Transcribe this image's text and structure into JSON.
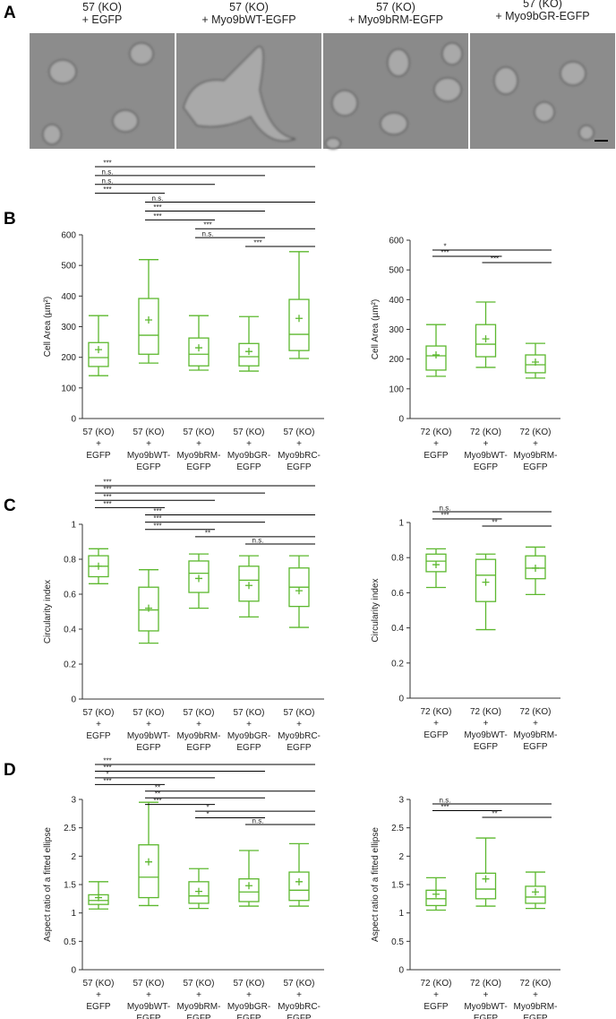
{
  "panels": [
    "A",
    "B",
    "C",
    "D"
  ],
  "images": [
    [
      "57 (KO)",
      "+ EGFP"
    ],
    [
      "57 (KO)",
      "+ Myo9bWT-EGFP"
    ],
    [
      "57 (KO)",
      "+ Myo9bRM-EGFP"
    ],
    [
      "57 (KO)",
      "+ Myo9bGR-EGFP"
    ]
  ],
  "chart_data": [
    {
      "type": "box",
      "ylabel": "Cell Area (µm²)",
      "color": "#5cb82e",
      "ylim": [
        0,
        600
      ],
      "yticks": [
        0,
        100,
        200,
        300,
        400,
        500,
        600
      ],
      "categories": [
        [
          "57 (KO)",
          "+",
          "EGFP"
        ],
        [
          "57 (KO)",
          "+",
          "Myo9bWT-",
          "EGFP"
        ],
        [
          "57 (KO)",
          "+",
          "Myo9bRM-",
          "EGFP"
        ],
        [
          "57 (KO)",
          "+",
          "Myo9bGR-",
          "EGFP"
        ],
        [
          "57 (KO)",
          "+",
          "Myo9bRC-",
          "EGFP"
        ]
      ],
      "boxes": [
        {
          "whislo": 140,
          "q1": 170,
          "med": 199,
          "q3": 248,
          "whishi": 336,
          "mean": 225
        },
        {
          "whislo": 181,
          "q1": 210,
          "med": 272,
          "q3": 392,
          "whishi": 519,
          "mean": 322
        },
        {
          "whislo": 158,
          "q1": 172,
          "med": 210,
          "q3": 263,
          "whishi": 336,
          "mean": 231
        },
        {
          "whislo": 155,
          "q1": 172,
          "med": 202,
          "q3": 245,
          "whishi": 333,
          "mean": 219
        },
        {
          "whislo": 196,
          "q1": 222,
          "med": 275,
          "q3": 389,
          "whishi": 545,
          "mean": 327
        }
      ],
      "comparisons": [
        {
          "from": 0,
          "to": 4,
          "label": "***"
        },
        {
          "from": 0,
          "to": 3,
          "label": "n.s."
        },
        {
          "from": 0,
          "to": 2,
          "label": "n.s."
        },
        {
          "from": 0,
          "to": 1,
          "label": "***"
        },
        {
          "from": 1,
          "to": 4,
          "label": "n.s."
        },
        {
          "from": 1,
          "to": 3,
          "label": "***"
        },
        {
          "from": 1,
          "to": 2,
          "label": "***"
        },
        {
          "from": 2,
          "to": 4,
          "label": "***"
        },
        {
          "from": 2,
          "to": 3,
          "label": "n.s."
        },
        {
          "from": 3,
          "to": 4,
          "label": "***"
        }
      ]
    },
    {
      "type": "box",
      "ylabel": "Cell Area (µm²)",
      "color": "#5cb82e",
      "ylim": [
        0,
        600
      ],
      "yticks": [
        0,
        100,
        200,
        300,
        400,
        500,
        600
      ],
      "categories": [
        [
          "72 (KO)",
          "+",
          "EGFP"
        ],
        [
          "72 (KO)",
          "+",
          "Myo9bWT-",
          "EGFP"
        ],
        [
          "72 (KO)",
          "+",
          "Myo9bRM-",
          "EGFP"
        ]
      ],
      "boxes": [
        {
          "whislo": 142,
          "q1": 163,
          "med": 211,
          "q3": 244,
          "whishi": 316,
          "mean": 214
        },
        {
          "whislo": 172,
          "q1": 208,
          "med": 250,
          "q3": 316,
          "whishi": 392,
          "mean": 268
        },
        {
          "whislo": 136,
          "q1": 154,
          "med": 181,
          "q3": 214,
          "whishi": 253,
          "mean": 190
        }
      ],
      "comparisons": [
        {
          "from": 0,
          "to": 2,
          "label": "*"
        },
        {
          "from": 0,
          "to": 1,
          "label": "***"
        },
        {
          "from": 1,
          "to": 2,
          "label": "***"
        }
      ]
    },
    {
      "type": "box",
      "ylabel": "Circularity index",
      "color": "#5cb82e",
      "ylim": [
        0,
        1
      ],
      "yticks": [
        0,
        0.2,
        0.4,
        0.6,
        0.8,
        1
      ],
      "categories": [
        [
          "57 (KO)",
          "+",
          "EGFP"
        ],
        [
          "57 (KO)",
          "+",
          "Myo9bWT-",
          "EGFP"
        ],
        [
          "57 (KO)",
          "+",
          "Myo9bRM-",
          "EGFP"
        ],
        [
          "57 (KO)",
          "+",
          "Myo9bGR-",
          "EGFP"
        ],
        [
          "57 (KO)",
          "+",
          "Myo9bRC-",
          "EGFP"
        ]
      ],
      "boxes": [
        {
          "whislo": 0.66,
          "q1": 0.7,
          "med": 0.76,
          "q3": 0.82,
          "whishi": 0.86,
          "mean": 0.76
        },
        {
          "whislo": 0.32,
          "q1": 0.39,
          "med": 0.51,
          "q3": 0.64,
          "whishi": 0.74,
          "mean": 0.52
        },
        {
          "whislo": 0.52,
          "q1": 0.61,
          "med": 0.72,
          "q3": 0.79,
          "whishi": 0.83,
          "mean": 0.69
        },
        {
          "whislo": 0.47,
          "q1": 0.56,
          "med": 0.68,
          "q3": 0.76,
          "whishi": 0.82,
          "mean": 0.65
        },
        {
          "whislo": 0.41,
          "q1": 0.53,
          "med": 0.64,
          "q3": 0.75,
          "whishi": 0.82,
          "mean": 0.62
        }
      ],
      "comparisons": [
        {
          "from": 0,
          "to": 4,
          "label": "***"
        },
        {
          "from": 0,
          "to": 3,
          "label": "***"
        },
        {
          "from": 0,
          "to": 2,
          "label": "***"
        },
        {
          "from": 0,
          "to": 1,
          "label": "***"
        },
        {
          "from": 1,
          "to": 4,
          "label": "***"
        },
        {
          "from": 1,
          "to": 3,
          "label": "***"
        },
        {
          "from": 1,
          "to": 2,
          "label": "***"
        },
        {
          "from": 2,
          "to": 4,
          "label": "**"
        },
        {
          "from": 3,
          "to": 4,
          "label": "n.s."
        }
      ]
    },
    {
      "type": "box",
      "ylabel": "Circularity index",
      "color": "#5cb82e",
      "ylim": [
        0,
        1
      ],
      "yticks": [
        0,
        0.2,
        0.4,
        0.6,
        0.8,
        1
      ],
      "categories": [
        [
          "72 (KO)",
          "+",
          "EGFP"
        ],
        [
          "72 (KO)",
          "+",
          "Myo9bWT-",
          "EGFP"
        ],
        [
          "72 (KO)",
          "+",
          "Myo9bRM-",
          "EGFP"
        ]
      ],
      "boxes": [
        {
          "whislo": 0.63,
          "q1": 0.72,
          "med": 0.78,
          "q3": 0.82,
          "whishi": 0.85,
          "mean": 0.76
        },
        {
          "whislo": 0.39,
          "q1": 0.55,
          "med": 0.7,
          "q3": 0.79,
          "whishi": 0.82,
          "mean": 0.66
        },
        {
          "whislo": 0.59,
          "q1": 0.68,
          "med": 0.74,
          "q3": 0.81,
          "whishi": 0.86,
          "mean": 0.74
        }
      ],
      "comparisons": [
        {
          "from": 0,
          "to": 2,
          "label": "n.s."
        },
        {
          "from": 0,
          "to": 1,
          "label": "***"
        },
        {
          "from": 1,
          "to": 2,
          "label": "**"
        }
      ]
    },
    {
      "type": "box",
      "ylabel": "Aspect ratio of a fitted ellipse",
      "color": "#5cb82e",
      "ylim": [
        0,
        3
      ],
      "yticks": [
        0,
        0.5,
        1,
        1.5,
        2,
        2.5,
        3
      ],
      "categories": [
        [
          "57 (KO)",
          "+",
          "EGFP"
        ],
        [
          "57 (KO)",
          "+",
          "Myo9bWT-",
          "EGFP"
        ],
        [
          "57 (KO)",
          "+",
          "Myo9bRM-",
          "EGFP"
        ],
        [
          "57 (KO)",
          "+",
          "Myo9bGR-",
          "EGFP"
        ],
        [
          "57 (KO)",
          "+",
          "Myo9bRC-",
          "EGFP"
        ]
      ],
      "boxes": [
        {
          "whislo": 1.07,
          "q1": 1.15,
          "med": 1.22,
          "q3": 1.32,
          "whishi": 1.55,
          "mean": 1.27
        },
        {
          "whislo": 1.13,
          "q1": 1.27,
          "med": 1.63,
          "q3": 2.2,
          "whishi": 2.95,
          "mean": 1.9
        },
        {
          "whislo": 1.08,
          "q1": 1.17,
          "med": 1.3,
          "q3": 1.55,
          "whishi": 1.78,
          "mean": 1.38
        },
        {
          "whislo": 1.12,
          "q1": 1.2,
          "med": 1.37,
          "q3": 1.6,
          "whishi": 2.1,
          "mean": 1.48
        },
        {
          "whislo": 1.12,
          "q1": 1.22,
          "med": 1.4,
          "q3": 1.72,
          "whishi": 2.22,
          "mean": 1.55
        }
      ],
      "comparisons": [
        {
          "from": 0,
          "to": 4,
          "label": "***"
        },
        {
          "from": 0,
          "to": 3,
          "label": "***"
        },
        {
          "from": 0,
          "to": 2,
          "label": "*"
        },
        {
          "from": 0,
          "to": 1,
          "label": "***"
        },
        {
          "from": 1,
          "to": 4,
          "label": "**"
        },
        {
          "from": 1,
          "to": 3,
          "label": "**"
        },
        {
          "from": 1,
          "to": 2,
          "label": "***"
        },
        {
          "from": 2,
          "to": 4,
          "label": "*"
        },
        {
          "from": 2,
          "to": 3,
          "label": "*"
        },
        {
          "from": 3,
          "to": 4,
          "label": "n.s."
        }
      ]
    },
    {
      "type": "box",
      "ylabel": "Aspect ratio of a fitted ellipse",
      "color": "#5cb82e",
      "ylim": [
        0,
        3
      ],
      "yticks": [
        0,
        0.5,
        1,
        1.5,
        2,
        2.5,
        3
      ],
      "categories": [
        [
          "72 (KO)",
          "+",
          "EGFP"
        ],
        [
          "72 (KO)",
          "+",
          "Myo9bWT-",
          "EGFP"
        ],
        [
          "72 (KO)",
          "+",
          "Myo9bRM-",
          "EGFP"
        ]
      ],
      "boxes": [
        {
          "whislo": 1.05,
          "q1": 1.13,
          "med": 1.25,
          "q3": 1.4,
          "whishi": 1.62,
          "mean": 1.33
        },
        {
          "whislo": 1.12,
          "q1": 1.25,
          "med": 1.42,
          "q3": 1.7,
          "whishi": 2.32,
          "mean": 1.6
        },
        {
          "whislo": 1.08,
          "q1": 1.17,
          "med": 1.28,
          "q3": 1.47,
          "whishi": 1.72,
          "mean": 1.37
        }
      ],
      "comparisons": [
        {
          "from": 0,
          "to": 2,
          "label": "n.s."
        },
        {
          "from": 0,
          "to": 1,
          "label": "***"
        },
        {
          "from": 1,
          "to": 2,
          "label": "**"
        }
      ]
    }
  ]
}
